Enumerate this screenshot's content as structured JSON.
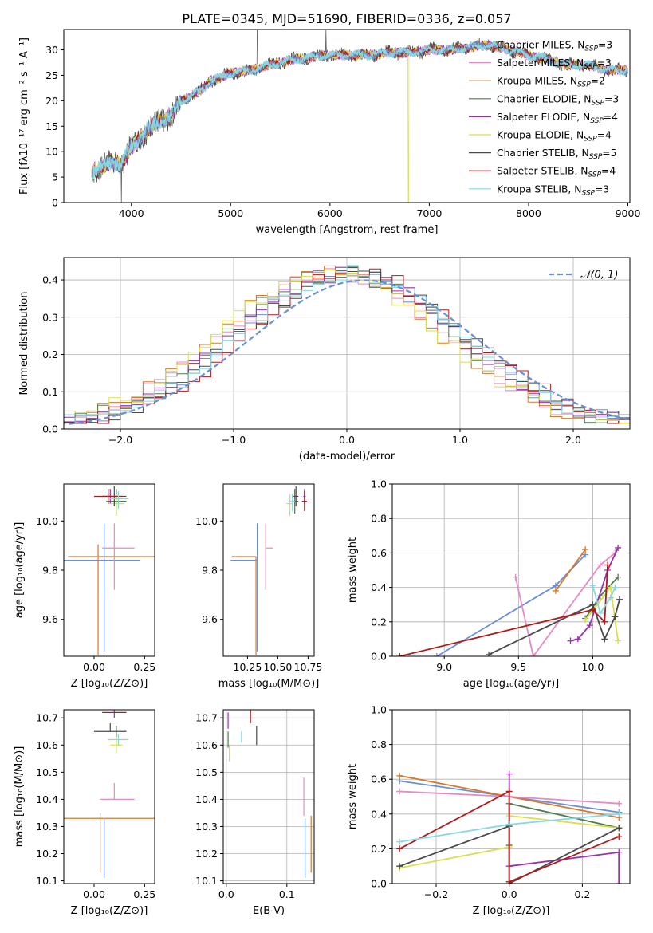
{
  "title": "PLATE=0345, MJD=51690, FIBERID=0336, z=0.057",
  "series": [
    {
      "name": "Chabrier MILES",
      "nssp": "3",
      "color": "#6a8fd6"
    },
    {
      "name": "Salpeter MILES",
      "nssp": "3",
      "color": "#e58ac4"
    },
    {
      "name": "Kroupa MILES",
      "nssp": "2",
      "color": "#d9782a"
    },
    {
      "name": "Chabrier ELODIE",
      "nssp": "3",
      "color": "#4f7a4f"
    },
    {
      "name": "Salpeter ELODIE",
      "nssp": "4",
      "color": "#9a2fb0"
    },
    {
      "name": "Kroupa ELODIE",
      "nssp": "4",
      "color": "#d7e04a"
    },
    {
      "name": "Chabrier STELIB",
      "nssp": "5",
      "color": "#4a4a4a"
    },
    {
      "name": "Salpeter STELIB",
      "nssp": "4",
      "color": "#b01a1a"
    },
    {
      "name": "Kroupa STELIB",
      "nssp": "3",
      "color": "#88d8e0"
    }
  ],
  "chart_data": [
    {
      "type": "line",
      "id": "spectrum",
      "xlabel": "wavelength [Angstrom, rest frame]",
      "ylabel": "Flux [fλ10⁻¹⁷ erg cm⁻² s⁻¹ A⁻¹]",
      "xlim": [
        3320,
        9020
      ],
      "ylim": [
        0,
        34
      ],
      "xticks": [
        4000,
        5000,
        6000,
        7000,
        8000,
        9000
      ],
      "yticks": [
        0,
        5,
        10,
        15,
        20,
        25,
        30
      ],
      "data_range": [
        3600,
        9000
      ],
      "spectrum_envelope": {
        "x": [
          3600,
          3700,
          3800,
          3900,
          4000,
          4100,
          4200,
          4300,
          4400,
          4500,
          4600,
          4700,
          4800,
          4900,
          5000,
          5200,
          5400,
          5600,
          5800,
          6000,
          6200,
          6400,
          6600,
          6800,
          7000,
          7200,
          7400,
          7600,
          7800,
          8000,
          8200,
          8400,
          8600,
          8800,
          9000
        ],
        "y": [
          6,
          7,
          8,
          7.5,
          11,
          13,
          15,
          16,
          17,
          20,
          21,
          22,
          24,
          24.5,
          25.5,
          26,
          27,
          28,
          28.5,
          29,
          29,
          29,
          29.5,
          29.5,
          30,
          30,
          30.5,
          31,
          30,
          29,
          28,
          27,
          27,
          26,
          26
        ]
      },
      "features": {
        "dropouts": [
          {
            "x": 3900,
            "series": "Chabrier STELIB"
          },
          {
            "x": 6790,
            "series": "Kroupa ELODIE"
          },
          {
            "x": 7410,
            "series": "Kroupa MILES"
          }
        ],
        "spikes": [
          5270,
          5960
        ]
      }
    },
    {
      "type": "bar",
      "id": "residuals",
      "xlabel": "(data-model)/error",
      "ylabel": "Normed distribution",
      "xlim": [
        -2.5,
        2.5
      ],
      "ylim": [
        0,
        0.46
      ],
      "xticks": [
        -2,
        -1,
        0,
        1,
        2
      ],
      "yticks": [
        0.0,
        0.1,
        0.2,
        0.3,
        0.4
      ],
      "grid": true,
      "bin_width": 0.1,
      "reference_curve": {
        "label": "𝒩(0, 1)",
        "mean": 0,
        "sigma": 1,
        "amplitude": 0.399,
        "offset": 0.15
      },
      "legend": "top-right"
    },
    {
      "type": "scatter",
      "id": "age-Z",
      "xlabel": "Z [log₁₀(Z/Z⊙)]",
      "ylabel": "age [log₁₀(age/yr)]",
      "xlim": [
        -0.15,
        0.3
      ],
      "ylim": [
        9.45,
        10.15
      ],
      "xticks": [
        0.0,
        0.25
      ],
      "yticks": [
        9.6,
        9.8,
        10.0
      ],
      "points": [
        {
          "series": "Chabrier MILES",
          "x": 0.05,
          "y": 9.84,
          "xerr": [
            0.2,
            0.18
          ],
          "yerr": [
            0.37,
            0.15
          ]
        },
        {
          "series": "Salpeter MILES",
          "x": 0.1,
          "y": 9.89,
          "xerr": [
            0.06,
            0.1
          ],
          "yerr": [
            0.17,
            0.1
          ]
        },
        {
          "series": "Kroupa MILES",
          "x": 0.02,
          "y": 9.855,
          "xerr": [
            0.15,
            0.3
          ],
          "yerr": [
            0.4,
            0.05
          ]
        },
        {
          "series": "Chabrier ELODIE",
          "x": 0.11,
          "y": 10.08,
          "xerr": [
            0.05,
            0.05
          ],
          "yerr": [
            0.05,
            0.05
          ]
        },
        {
          "series": "Salpeter ELODIE",
          "x": 0.08,
          "y": 10.1,
          "xerr": [
            0.04,
            0.04
          ],
          "yerr": [
            0.03,
            0.03
          ]
        },
        {
          "series": "Kroupa ELODIE",
          "x": 0.11,
          "y": 10.07,
          "xerr": [
            0.04,
            0.04
          ],
          "yerr": [
            0.05,
            0.04
          ]
        },
        {
          "series": "Chabrier STELIB",
          "x": 0.1,
          "y": 10.1,
          "xerr": [
            0.06,
            0.06
          ],
          "yerr": [
            0.04,
            0.04
          ]
        },
        {
          "series": "Salpeter STELIB",
          "x": 0.07,
          "y": 10.1,
          "xerr": [
            0.07,
            0.07
          ],
          "yerr": [
            0.03,
            0.03
          ]
        },
        {
          "series": "Kroupa STELIB",
          "x": 0.12,
          "y": 10.09,
          "xerr": [
            0.05,
            0.05
          ],
          "yerr": [
            0.04,
            0.03
          ]
        }
      ]
    },
    {
      "type": "scatter",
      "id": "age-mass",
      "xlabel": "mass [log₁₀(M/M⊙)]",
      "ylabel": "",
      "xlim": [
        10.05,
        10.8
      ],
      "ylim": [
        9.45,
        10.15
      ],
      "xticks": [
        10.25,
        10.5,
        10.75
      ],
      "yticks": [
        9.6,
        9.8,
        10.0
      ],
      "points": [
        {
          "series": "Chabrier MILES",
          "x": 10.33,
          "y": 9.84,
          "xerr": [
            0.22,
            0.0
          ],
          "yerr": [
            0.37,
            0.15
          ]
        },
        {
          "series": "Salpeter MILES",
          "x": 10.4,
          "y": 9.89,
          "xerr": [
            0.0,
            0.06
          ],
          "yerr": [
            0.17,
            0.1
          ]
        },
        {
          "series": "Kroupa MILES",
          "x": 10.32,
          "y": 9.855,
          "xerr": [
            0.2,
            0.0
          ],
          "yerr": [
            0.4,
            0.0
          ]
        },
        {
          "series": "Chabrier ELODIE",
          "x": 10.64,
          "y": 10.08,
          "xerr": [
            0.03,
            0.03
          ],
          "yerr": [
            0.05,
            0.05
          ]
        },
        {
          "series": "Salpeter ELODIE",
          "x": 10.72,
          "y": 10.1,
          "xerr": [
            0.01,
            0.01
          ],
          "yerr": [
            0.03,
            0.03
          ]
        },
        {
          "series": "Kroupa ELODIE",
          "x": 10.6,
          "y": 10.07,
          "xerr": [
            0.03,
            0.03
          ],
          "yerr": [
            0.05,
            0.04
          ]
        },
        {
          "series": "Chabrier STELIB",
          "x": 10.65,
          "y": 10.1,
          "xerr": [
            0.02,
            0.02
          ],
          "yerr": [
            0.04,
            0.04
          ]
        },
        {
          "series": "Salpeter STELIB",
          "x": 10.72,
          "y": 10.08,
          "xerr": [
            0.02,
            0.02
          ],
          "yerr": [
            0.04,
            0.04
          ]
        },
        {
          "series": "Kroupa STELIB",
          "x": 10.62,
          "y": 10.08,
          "xerr": [
            0.02,
            0.02
          ],
          "yerr": [
            0.04,
            0.03
          ]
        }
      ]
    },
    {
      "type": "line",
      "id": "weight-age",
      "xlabel": "age  [log₁₀(age/yr)]",
      "ylabel": "mass weight",
      "xlim": [
        8.65,
        10.25
      ],
      "ylim": [
        0,
        1
      ],
      "xticks": [
        9.0,
        9.5,
        10.0
      ],
      "yticks": [
        0.0,
        0.2,
        0.4,
        0.6,
        0.8,
        1.0
      ],
      "grid": true,
      "lines": [
        {
          "series": "Chabrier MILES",
          "x": [
            8.95,
            9.75,
            9.95
          ],
          "y": [
            0.0,
            0.41,
            0.59
          ]
        },
        {
          "series": "Kroupa MILES",
          "x": [
            9.75,
            9.95
          ],
          "y": [
            0.38,
            0.62
          ]
        },
        {
          "series": "Salpeter MILES",
          "x": [
            9.48,
            9.6,
            10.05,
            10.15
          ],
          "y": [
            0.46,
            0.0,
            0.53,
            0.6
          ]
        },
        {
          "series": "Chabrier ELODIE",
          "x": [
            9.95,
            10.05,
            10.17
          ],
          "y": [
            0.22,
            0.35,
            0.46
          ]
        },
        {
          "series": "Salpeter ELODIE",
          "x": [
            9.85,
            9.9,
            9.98,
            10.1,
            10.17
          ],
          "y": [
            0.09,
            0.1,
            0.18,
            0.5,
            0.63
          ]
        },
        {
          "series": "Kroupa ELODIE",
          "x": [
            9.95,
            10.12,
            10.17
          ],
          "y": [
            0.21,
            0.4,
            0.09
          ]
        },
        {
          "series": "Chabrier STELIB",
          "x": [
            9.3,
            10.0,
            10.08,
            10.15,
            10.18
          ],
          "y": [
            0.01,
            0.3,
            0.1,
            0.23,
            0.33
          ]
        },
        {
          "series": "Salpeter STELIB",
          "x": [
            8.7,
            10.0,
            10.08,
            10.1
          ],
          "y": [
            0.0,
            0.27,
            0.2,
            0.53
          ]
        },
        {
          "series": "Kroupa STELIB",
          "x": [
            10.0,
            10.05,
            10.12,
            10.15
          ],
          "y": [
            0.41,
            0.25,
            0.34,
            0.4
          ]
        }
      ]
    },
    {
      "type": "scatter",
      "id": "mass-Z",
      "xlabel": "Z [log₁₀(Z/Z⊙)]",
      "ylabel": "mass [log₁₀(M/M⊙)]",
      "xlim": [
        -0.15,
        0.3
      ],
      "ylim": [
        10.09,
        10.73
      ],
      "xticks": [
        0.0,
        0.25
      ],
      "yticks": [
        10.1,
        10.2,
        10.3,
        10.4,
        10.5,
        10.6,
        10.7
      ],
      "points": [
        {
          "series": "Chabrier MILES",
          "x": 0.05,
          "y": 10.33,
          "xerr": [
            0.0,
            0.0
          ],
          "yerr": [
            0.22,
            0.0
          ]
        },
        {
          "series": "Salpeter MILES",
          "x": 0.1,
          "y": 10.4,
          "xerr": [
            0.07,
            0.1
          ],
          "yerr": [
            0.0,
            0.06
          ]
        },
        {
          "series": "Kroupa MILES",
          "x": 0.03,
          "y": 10.33,
          "xerr": [
            0.18,
            0.27
          ],
          "yerr": [
            0.2,
            0.02
          ]
        },
        {
          "series": "Chabrier ELODIE",
          "x": 0.11,
          "y": 10.64,
          "xerr": [
            0.0,
            0.0
          ],
          "yerr": [
            0.03,
            0.03
          ]
        },
        {
          "series": "Salpeter ELODIE",
          "x": 0.1,
          "y": 10.72,
          "xerr": [
            0.0,
            0.0
          ],
          "yerr": [
            0.02,
            0.01
          ]
        },
        {
          "series": "Kroupa ELODIE",
          "x": 0.11,
          "y": 10.6,
          "xerr": [
            0.03,
            0.03
          ],
          "yerr": [
            0.03,
            0.03
          ]
        },
        {
          "series": "Chabrier STELIB",
          "x": 0.08,
          "y": 10.65,
          "xerr": [
            0.08,
            0.08
          ],
          "yerr": [
            0.0,
            0.03
          ]
        },
        {
          "series": "Salpeter STELIB",
          "x": 0.1,
          "y": 10.72,
          "xerr": [
            0.06,
            0.06
          ],
          "yerr": [
            0.0,
            0.0
          ]
        },
        {
          "series": "Kroupa STELIB",
          "x": 0.12,
          "y": 10.62,
          "xerr": [
            0.05,
            0.05
          ],
          "yerr": [
            0.02,
            0.02
          ]
        }
      ]
    },
    {
      "type": "scatter",
      "id": "mass-ebv",
      "xlabel": "E(B-V)",
      "ylabel": "",
      "xlim": [
        -0.005,
        0.145
      ],
      "ylim": [
        10.09,
        10.73
      ],
      "xticks": [
        0.0,
        0.1
      ],
      "yticks": [
        10.1,
        10.2,
        10.3,
        10.4,
        10.5,
        10.6,
        10.7
      ],
      "grid": true,
      "points": [
        {
          "series": "Chabrier MILES",
          "x": 0.13,
          "y": 10.33,
          "yerr": [
            0.22,
            0.0
          ]
        },
        {
          "series": "Salpeter MILES",
          "x": 0.128,
          "y": 10.4,
          "yerr": [
            0.06,
            0.08
          ]
        },
        {
          "series": "Kroupa MILES",
          "x": 0.14,
          "y": 10.33,
          "yerr": [
            0.2,
            0.01
          ]
        },
        {
          "series": "Chabrier ELODIE",
          "x": 0.003,
          "y": 10.62,
          "yerr": [
            0.03,
            0.03
          ]
        },
        {
          "series": "Salpeter ELODIE",
          "x": 0.003,
          "y": 10.69,
          "yerr": [
            0.03,
            0.03
          ]
        },
        {
          "series": "Kroupa ELODIE",
          "x": 0.005,
          "y": 10.57,
          "yerr": [
            0.03,
            0.03
          ]
        },
        {
          "series": "Chabrier STELIB",
          "x": 0.05,
          "y": 10.64,
          "yerr": [
            0.04,
            0.03
          ]
        },
        {
          "series": "Salpeter STELIB",
          "x": 0.04,
          "y": 10.71,
          "yerr": [
            0.03,
            0.02
          ]
        },
        {
          "series": "Kroupa STELIB",
          "x": 0.025,
          "y": 10.63,
          "yerr": [
            0.02,
            0.02
          ]
        }
      ]
    },
    {
      "type": "line",
      "id": "weight-Z",
      "xlabel": "Z [log₁₀(Z/Z⊙)]",
      "ylabel": "mass weight",
      "xlim": [
        -0.32,
        0.33
      ],
      "ylim": [
        0,
        1
      ],
      "xticks": [
        -0.2,
        0.0,
        0.2
      ],
      "yticks": [
        0.0,
        0.2,
        0.4,
        0.6,
        0.8,
        1.0
      ],
      "grid": true,
      "lines": [
        {
          "series": "Chabrier MILES",
          "x": [
            -0.3,
            0.0,
            0.3
          ],
          "y": [
            0.59,
            0.5,
            0.41
          ]
        },
        {
          "series": "Kroupa MILES",
          "x": [
            -0.3,
            0.0,
            0.3
          ],
          "y": [
            0.62,
            0.5,
            0.38
          ]
        },
        {
          "series": "Salpeter MILES",
          "x": [
            -0.3,
            0.0,
            0.3
          ],
          "y": [
            0.53,
            0.5,
            0.46
          ]
        },
        {
          "series": "Chabrier ELODIE",
          "x": [
            0.0,
            0.0,
            0.3
          ],
          "y": [
            0.22,
            0.46,
            0.32
          ]
        },
        {
          "series": "Salpeter ELODIE",
          "x": [
            0.0,
            0.0,
            0.3,
            0.3
          ],
          "y": [
            0.63,
            0.1,
            0.18,
            0.0
          ]
        },
        {
          "series": "Kroupa ELODIE",
          "x": [
            -0.3,
            0.0,
            0.0,
            0.3
          ],
          "y": [
            0.09,
            0.21,
            0.39,
            0.32
          ]
        },
        {
          "series": "Chabrier STELIB",
          "x": [
            -0.3,
            0.0,
            0.0,
            0.3
          ],
          "y": [
            0.1,
            0.33,
            0.0,
            0.32
          ]
        },
        {
          "series": "Salpeter STELIB",
          "x": [
            -0.3,
            0.0,
            0.0,
            0.3
          ],
          "y": [
            0.2,
            0.53,
            0.01,
            0.27
          ]
        },
        {
          "series": "Kroupa STELIB",
          "x": [
            -0.3,
            0.0,
            0.3
          ],
          "y": [
            0.24,
            0.34,
            0.4
          ]
        }
      ]
    }
  ]
}
